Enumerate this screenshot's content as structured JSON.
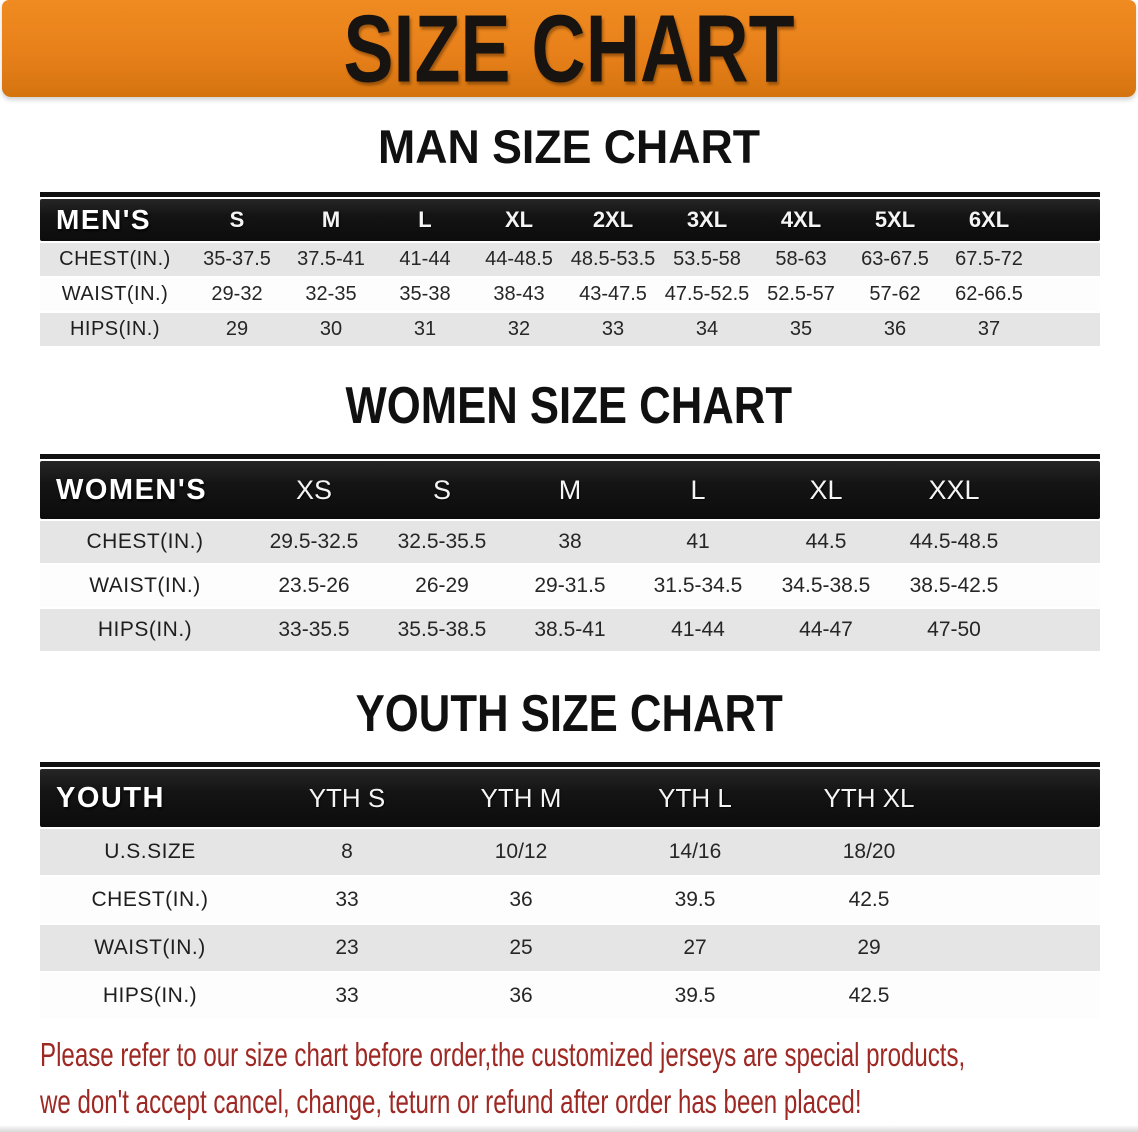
{
  "banner": {
    "title": "SIZE CHART"
  },
  "colors": {
    "banner_bg": "#e8801a",
    "banner_bg_light": "#ef8b20",
    "banner_bg_dark": "#d4740f",
    "table_header_bg": "#141414",
    "row_shaded": "#e5e5e5",
    "row_plain": "#fdfdfd",
    "footer_text": "#9e2823"
  },
  "sections": {
    "men": {
      "title": "MAN SIZE CHART",
      "table": {
        "header_label": "MEN'S",
        "sizes": [
          "S",
          "M",
          "L",
          "XL",
          "2XL",
          "3XL",
          "4XL",
          "5XL",
          "6XL"
        ],
        "rows": [
          {
            "label": "CHEST(IN.)",
            "values": [
              "35-37.5",
              "37.5-41",
              "41-44",
              "44-48.5",
              "48.5-53.5",
              "53.5-58",
              "58-63",
              "63-67.5",
              "67.5-72"
            ]
          },
          {
            "label": "WAIST(IN.)",
            "values": [
              "29-32",
              "32-35",
              "35-38",
              "38-43",
              "43-47.5",
              "47.5-52.5",
              "52.5-57",
              "57-62",
              "62-66.5"
            ]
          },
          {
            "label": "HIPS(IN.)",
            "values": [
              "29",
              "30",
              "31",
              "32",
              "33",
              "34",
              "35",
              "36",
              "37"
            ]
          }
        ]
      }
    },
    "women": {
      "title": "WOMEN SIZE CHART",
      "table": {
        "header_label": "WOMEN'S",
        "sizes": [
          "XS",
          "S",
          "M",
          "L",
          "XL",
          "XXL"
        ],
        "rows": [
          {
            "label": "CHEST(IN.)",
            "values": [
              "29.5-32.5",
              "32.5-35.5",
              "38",
              "41",
              "44.5",
              "44.5-48.5"
            ]
          },
          {
            "label": "WAIST(IN.)",
            "values": [
              "23.5-26",
              "26-29",
              "29-31.5",
              "31.5-34.5",
              "34.5-38.5",
              "38.5-42.5"
            ]
          },
          {
            "label": "HIPS(IN.)",
            "values": [
              "33-35.5",
              "35.5-38.5",
              "38.5-41",
              "41-44",
              "44-47",
              "47-50"
            ]
          }
        ]
      }
    },
    "youth": {
      "title": "YOUTH SIZE CHART",
      "table": {
        "header_label": "YOUTH",
        "sizes": [
          "YTH S",
          "YTH M",
          "YTH L",
          "YTH XL"
        ],
        "rows": [
          {
            "label": "U.S.SIZE",
            "values": [
              "8",
              "10/12",
              "14/16",
              "18/20"
            ]
          },
          {
            "label": "CHEST(IN.)",
            "values": [
              "33",
              "36",
              "39.5",
              "42.5"
            ]
          },
          {
            "label": "WAIST(IN.)",
            "values": [
              "23",
              "25",
              "27",
              "29"
            ]
          },
          {
            "label": "HIPS(IN.)",
            "values": [
              "33",
              "36",
              "39.5",
              "42.5"
            ]
          }
        ]
      }
    }
  },
  "footer": {
    "line1": "Please refer to our size chart before order,the customized jerseys are special products,",
    "line2": "we don't accept cancel, change, teturn or refund after order has been placed!"
  }
}
